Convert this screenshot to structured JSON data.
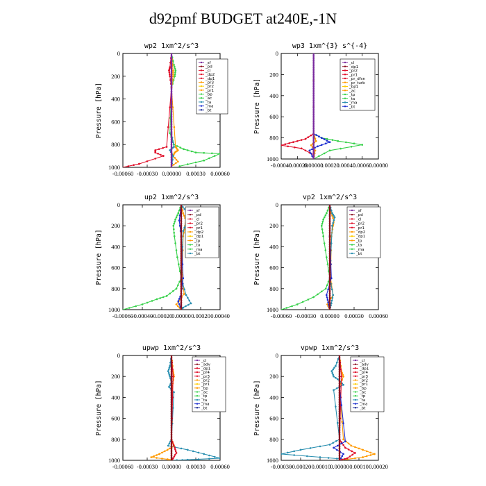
{
  "title": "d92pmf  BUDGET at240E,-1N",
  "colors": {
    "purple": "#7a2a9e",
    "darkred": "#8a1020",
    "red": "#e0102a",
    "orange": "#ff9a00",
    "yellow": "#ffcc00",
    "green": "#37d14a",
    "teal": "#2a8fb0",
    "blue": "#1e2fd0",
    "darkblue": "#102090",
    "cyan": "#5fe0f0",
    "black": "#000000"
  },
  "chart_data": [
    {
      "type": "line",
      "title": "wp2  1xm^2/s^3",
      "ylabel": "Pressure [hPa]",
      "xlim": [
        -0.0006,
        0.0006
      ],
      "ylim": [
        1000,
        0
      ],
      "xticks": [
        "-0.00060",
        "-0.00030",
        "0.00000",
        "0.00030",
        "0.00060"
      ],
      "yticks": [
        "0",
        "200",
        "400",
        "600",
        "800",
        "1000"
      ],
      "legend": [
        "_sf",
        "_pd",
        "_cl",
        "_dp2",
        "_dp1",
        "_pr3",
        "_pr2",
        "_pr1",
        "_bp",
        "_ac",
        "_ta",
        "_ma",
        "_bt"
      ],
      "series": [
        {
          "name": "_pr1",
          "color": "green",
          "x": [
            0,
            3e-05,
            5e-05,
            4e-05,
            0,
            -2e-05,
            3e-05,
            0.00015,
            0.0003,
            0.0006,
            0.0004,
            0.0001
          ],
          "p": [
            0,
            100,
            150,
            200,
            300,
            700,
            800,
            840,
            870,
            880,
            940,
            990
          ]
        },
        {
          "name": "_dp1",
          "color": "red",
          "x": [
            0,
            -2e-05,
            -3e-05,
            -2e-05,
            0,
            -6e-05,
            -0.0002,
            -0.0002,
            -0.0001,
            -0.0004,
            -0.0006
          ],
          "p": [
            0,
            120,
            150,
            200,
            300,
            820,
            850,
            870,
            900,
            970,
            1000
          ]
        },
        {
          "name": "_pr3",
          "color": "orange",
          "x": [
            0,
            2e-05,
            2e-05,
            0,
            5e-05,
            8e-05,
            4e-05,
            2e-05,
            8e-05,
            0
          ],
          "p": [
            0,
            150,
            200,
            300,
            820,
            850,
            870,
            900,
            950,
            990
          ]
        },
        {
          "name": "_bp",
          "color": "teal",
          "x": [
            0,
            0,
            3e-05,
            -2e-05,
            2e-05,
            0
          ],
          "p": [
            0,
            700,
            820,
            850,
            900,
            1000
          ]
        },
        {
          "name": "_bt",
          "color": "purple",
          "x": [
            0,
            0
          ],
          "p": [
            0,
            1000
          ]
        }
      ]
    },
    {
      "type": "line",
      "title": "wp3  1xm^{3} s^{-4}",
      "ylabel": "Pressure [hPa]",
      "xlim": [
        -0.0004,
        0.0008
      ],
      "ylim": [
        1000,
        0
      ],
      "xticks": [
        "-0.00040",
        "-0.00020",
        "0.00000",
        "0.00020",
        "0.00040",
        "0.00060",
        "0.00080"
      ],
      "yticks": [
        "0",
        "200",
        "400",
        "600",
        "800",
        "1000"
      ],
      "legend": [
        "_cl",
        "_dp1",
        "_pr2",
        "_pr1",
        "_pr_dfsn",
        "_pr_turb",
        "_bp1",
        "_ac",
        "_tp",
        "_ta",
        "_ma",
        "_bt"
      ],
      "series": [
        {
          "name": "_ac",
          "color": "green",
          "x": [
            0,
            0,
            0.0001,
            0.0003,
            0.0006,
            0.0002,
            0
          ],
          "p": [
            0,
            760,
            800,
            830,
            865,
            920,
            1000
          ]
        },
        {
          "name": "_dp1",
          "color": "red",
          "x": [
            0,
            0,
            -0.0001,
            -0.00025,
            -0.0004,
            -0.00015,
            0
          ],
          "p": [
            0,
            760,
            810,
            840,
            870,
            900,
            960
          ]
        },
        {
          "name": "_ta",
          "color": "blue",
          "x": [
            0,
            0,
            0.0001,
            0.0002,
            5e-05,
            -5e-05,
            0
          ],
          "p": [
            0,
            760,
            800,
            840,
            880,
            920,
            1000
          ]
        },
        {
          "name": "_pr2",
          "color": "orange",
          "x": [
            0,
            0,
            3e-05,
            -3e-05,
            2e-05,
            0
          ],
          "p": [
            0,
            760,
            830,
            870,
            920,
            1000
          ]
        },
        {
          "name": "_bt",
          "color": "purple",
          "x": [
            0,
            0
          ],
          "p": [
            0,
            1000
          ]
        }
      ]
    },
    {
      "type": "line",
      "title": "up2  1xm^2/s^3",
      "ylabel": "Pressure [hPa]",
      "xlim": [
        -0.0006,
        0.0004
      ],
      "ylim": [
        1000,
        0
      ],
      "xticks": [
        "-0.00060",
        "-0.00040",
        "-0.00020",
        "0.00000",
        "0.00020",
        "0.00040"
      ],
      "yticks": [
        "0",
        "200",
        "400",
        "600",
        "800",
        "1000"
      ],
      "legend": [
        "_sf",
        "_pd",
        "_cl",
        "_pr2",
        "_pr1",
        "_dp2",
        "_dp1",
        "_tp",
        "_ta",
        "_ma",
        "_bt"
      ],
      "series": [
        {
          "name": "_dp1",
          "color": "green",
          "x": [
            0,
            -3e-05,
            -6e-05,
            -8e-05,
            -7e-05,
            -4e-05,
            0,
            -5e-05,
            -0.00015,
            -0.00025,
            -0.0004,
            -0.0006
          ],
          "p": [
            0,
            80,
            140,
            200,
            300,
            500,
            700,
            800,
            870,
            900,
            950,
            1000
          ]
        },
        {
          "name": "_pr2",
          "color": "orange",
          "x": [
            0,
            2e-05,
            5e-05,
            4e-05,
            2e-05,
            1e-05,
            3e-05,
            -5e-05,
            0
          ],
          "p": [
            0,
            80,
            150,
            200,
            300,
            700,
            850,
            950,
            1000
          ]
        },
        {
          "name": "_tp",
          "color": "teal",
          "x": [
            0,
            5e-05,
            0.0001,
            6e-05,
            2e-05,
            0,
            5e-05,
            0.0001,
            2e-05,
            0
          ],
          "p": [
            0,
            60,
            100,
            150,
            250,
            700,
            860,
            940,
            980,
            1000
          ]
        },
        {
          "name": "_ta",
          "color": "blue",
          "x": [
            0,
            -2e-05,
            0,
            2e-05,
            0,
            -3e-05,
            0
          ],
          "p": [
            0,
            150,
            300,
            700,
            850,
            920,
            1000
          ]
        },
        {
          "name": "_bt",
          "color": "darkred",
          "x": [
            0,
            0
          ],
          "p": [
            0,
            1000
          ]
        }
      ]
    },
    {
      "type": "line",
      "title": "vp2  1xm^2/s^3",
      "ylabel": "Pressure [hPa]",
      "xlim": [
        -0.0006,
        0.0006
      ],
      "ylim": [
        1000,
        0
      ],
      "xticks": [
        "-0.00060",
        "-0.00030",
        "0.00000",
        "0.00030",
        "0.00060"
      ],
      "yticks": [
        "0",
        "200",
        "400",
        "600",
        "800",
        "1000"
      ],
      "legend": [
        "_sf",
        "_pd",
        "_cl",
        "_pr2",
        "_pr1",
        "_dp2",
        "_dp1",
        "_tp",
        "_ta",
        "_ma",
        "_bt"
      ],
      "series": [
        {
          "name": "_dp1",
          "color": "green",
          "x": [
            0,
            -4e-05,
            -8e-05,
            -0.0001,
            -8e-05,
            -4e-05,
            0,
            -5e-05,
            -0.0002,
            -0.0004,
            -0.0006
          ],
          "p": [
            0,
            80,
            140,
            200,
            300,
            500,
            700,
            800,
            880,
            950,
            1000
          ]
        },
        {
          "name": "_pr2",
          "color": "orange",
          "x": [
            0,
            2e-05,
            5e-05,
            4e-05,
            2e-05,
            1e-05,
            4e-05,
            -3e-05,
            0
          ],
          "p": [
            0,
            80,
            150,
            200,
            300,
            700,
            860,
            950,
            1000
          ]
        },
        {
          "name": "_tp",
          "color": "teal",
          "x": [
            0,
            3e-05,
            6e-05,
            3e-05,
            0,
            4e-05,
            2e-05,
            0
          ],
          "p": [
            0,
            80,
            120,
            200,
            700,
            860,
            940,
            1000
          ]
        },
        {
          "name": "_ta",
          "color": "blue",
          "x": [
            0,
            0,
            2e-05,
            -4e-05,
            -2e-05,
            0
          ],
          "p": [
            0,
            300,
            700,
            860,
            930,
            1000
          ]
        },
        {
          "name": "_bt",
          "color": "darkred",
          "x": [
            0,
            0
          ],
          "p": [
            0,
            1000
          ]
        }
      ]
    },
    {
      "type": "line",
      "title": "upwp  1xm^2/s^3",
      "ylabel": "Pressure [hPa]",
      "xlim": [
        -0.0006,
        0.0006
      ],
      "ylim": [
        1000,
        0
      ],
      "xticks": [
        "-0.00060",
        "-0.00030",
        "0.00000",
        "0.00030",
        "0.00060"
      ],
      "yticks": [
        "0",
        "200",
        "400",
        "600",
        "800",
        "1000"
      ],
      "legend": [
        "_cl",
        "_adv",
        "_dp1",
        "_pr4",
        "_pr3",
        "_pr2",
        "_pr1",
        "_bp",
        "_ac",
        "_tp",
        "_ta",
        "_ma",
        "_bt"
      ],
      "series": [
        {
          "name": "_tp",
          "color": "teal",
          "x": [
            0,
            -2e-05,
            -4e-05,
            -2e-05,
            0,
            -3e-05,
            3e-05,
            0,
            -4e-05,
            0.0002,
            0.0004,
            0.0006,
            0.0002,
            0
          ],
          "p": [
            0,
            100,
            150,
            200,
            250,
            300,
            350,
            800,
            860,
            900,
            940,
            980,
            995,
            1000
          ]
        },
        {
          "name": "_pr2",
          "color": "orange",
          "x": [
            0,
            2e-05,
            3e-05,
            1e-05,
            0,
            3e-05,
            -5e-05,
            -0.00015,
            -0.00025,
            -5e-05,
            0
          ],
          "p": [
            0,
            150,
            200,
            300,
            800,
            860,
            900,
            940,
            970,
            990,
            1000
          ]
        },
        {
          "name": "_pr3",
          "color": "red",
          "x": [
            0,
            2e-05,
            0,
            4e-05,
            6e-05,
            2e-05,
            0
          ],
          "p": [
            0,
            200,
            800,
            880,
            930,
            980,
            1000
          ]
        },
        {
          "name": "_bt",
          "color": "darkred",
          "x": [
            0,
            0
          ],
          "p": [
            0,
            1000
          ]
        }
      ]
    },
    {
      "type": "line",
      "title": "vpwp  1xm^2/s^3",
      "ylabel": "Pressure [hPa]",
      "xlim": [
        -0.0003,
        0.0002
      ],
      "ylim": [
        1000,
        0
      ],
      "xticks": [
        "-0.00030",
        "-0.00020",
        "-0.00010",
        "0.00000",
        "0.00010",
        "0.00020"
      ],
      "yticks": [
        "0",
        "200",
        "400",
        "600",
        "800",
        "1000"
      ],
      "legend": [
        "_cl",
        "_adv",
        "_dp1",
        "_pr4",
        "_pr3",
        "_pr2",
        "_pr1",
        "_bp",
        "_ac",
        "_tp",
        "_ta",
        "_ma",
        "_bt"
      ],
      "series": [
        {
          "name": "_tp",
          "color": "teal",
          "x": [
            0,
            -2e-05,
            -4e-05,
            -3e-05,
            0,
            2e-05,
            -3e-05,
            0,
            -5e-05,
            -0.0002,
            -0.0003,
            -0.0001,
            3e-05,
            0
          ],
          "p": [
            0,
            100,
            150,
            200,
            240,
            280,
            330,
            800,
            850,
            900,
            940,
            970,
            990,
            1000
          ]
        },
        {
          "name": "_pr2",
          "color": "orange",
          "x": [
            0,
            1e-05,
            2e-05,
            0,
            2e-05,
            6e-05,
            0.00012,
            0.00018,
            0.00012,
            0
          ],
          "p": [
            0,
            150,
            200,
            300,
            800,
            860,
            900,
            940,
            970,
            1000
          ]
        },
        {
          "name": "_pr3",
          "color": "red",
          "x": [
            0,
            1e-05,
            0,
            3e-05,
            8e-05,
            4e-05,
            0
          ],
          "p": [
            0,
            200,
            800,
            880,
            930,
            980,
            1000
          ]
        },
        {
          "name": "_ta",
          "color": "blue",
          "x": [
            0,
            0,
            3e-05,
            -3e-05,
            2e-05,
            0
          ],
          "p": [
            0,
            300,
            820,
            880,
            940,
            1000
          ]
        },
        {
          "name": "_bt",
          "color": "darkred",
          "x": [
            0,
            0
          ],
          "p": [
            0,
            1000
          ]
        }
      ]
    }
  ]
}
